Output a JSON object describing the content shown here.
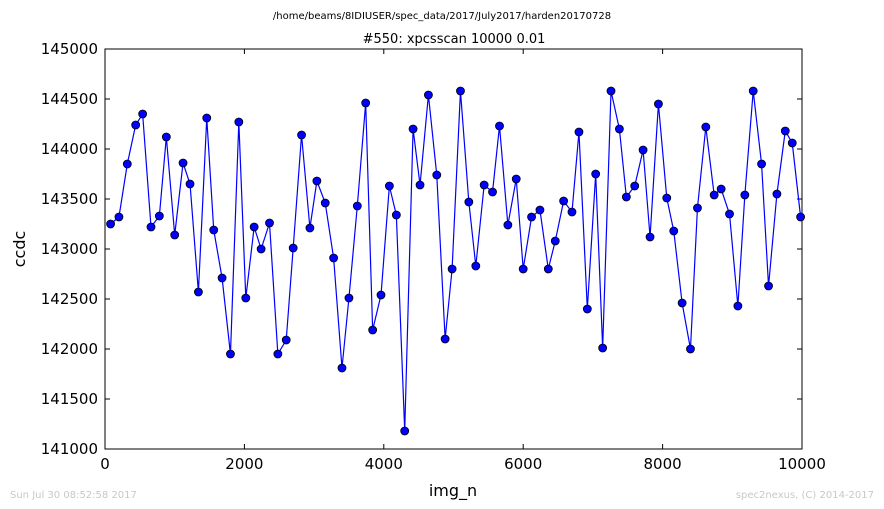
{
  "figure": {
    "suptitle": "/home/beams/8IDIUSER/spec_data/2017/July2017/harden20170728",
    "footer_left": "Sun Jul 30 08:52:58 2017",
    "footer_right": "spec2nexus, (C) 2014-2017"
  },
  "chart_data": {
    "type": "line",
    "title": "#550: xpcsscan 10000 0.01",
    "xlabel": "img_n",
    "ylabel": "ccdc",
    "xlim": [
      0,
      10000
    ],
    "ylim": [
      141000,
      145000
    ],
    "xticks": [
      0,
      2000,
      4000,
      6000,
      8000,
      10000
    ],
    "yticks": [
      141000,
      141500,
      142000,
      142500,
      143000,
      143500,
      144000,
      144500,
      145000
    ],
    "grid": false,
    "marker": "circle",
    "line_color": "#0000ff",
    "marker_color": "#0000ff",
    "series": [
      {
        "x": [
          80,
          200,
          320,
          440,
          540,
          660,
          780,
          880,
          1000,
          1120,
          1220,
          1340,
          1460,
          1560,
          1680,
          1800,
          1920,
          2020,
          2140,
          2240,
          2360,
          2480,
          2600,
          2700,
          2820,
          2940,
          3040,
          3160,
          3280,
          3400,
          3500,
          3620,
          3740,
          3840,
          3960,
          4080,
          4180,
          4300,
          4420,
          4520,
          4640,
          4760,
          4880,
          4980,
          5100,
          5220,
          5320,
          5440,
          5560,
          5660,
          5780,
          5900,
          6000,
          6120,
          6240,
          6360,
          6460,
          6580,
          6700,
          6800,
          6920,
          7040,
          7140,
          7260,
          7380,
          7480,
          7600,
          7720,
          7820,
          7940,
          8060,
          8160,
          8280,
          8400,
          8500,
          8620,
          8740,
          8840,
          8960,
          9080,
          9180,
          9300,
          9420,
          9520,
          9640,
          9760,
          9860,
          9980
        ],
        "y": [
          143250,
          143320,
          143850,
          144240,
          144350,
          143220,
          143330,
          144120,
          143140,
          143860,
          143650,
          142570,
          144310,
          143190,
          142710,
          141950,
          144270,
          142510,
          143220,
          143000,
          143260,
          141950,
          142090,
          143010,
          144140,
          143210,
          143680,
          143460,
          142910,
          141810,
          142510,
          143430,
          144460,
          142190,
          142540,
          143630,
          143340,
          141180,
          144200,
          143640,
          144540,
          143740,
          142100,
          142800,
          144580,
          143470,
          142830,
          143640,
          143570,
          144230,
          143240,
          143700,
          142800,
          143320,
          143390,
          142800,
          143080,
          143480,
          143370,
          144170,
          142400,
          143750,
          142010,
          144580,
          144200,
          143520,
          143630,
          143990,
          143120,
          144450,
          143510,
          143180,
          142460,
          142000,
          143410,
          144220,
          143540,
          143600,
          143350,
          142430,
          143540,
          144580,
          143850,
          142630,
          143550,
          144180,
          144060,
          143320
        ]
      }
    ]
  }
}
